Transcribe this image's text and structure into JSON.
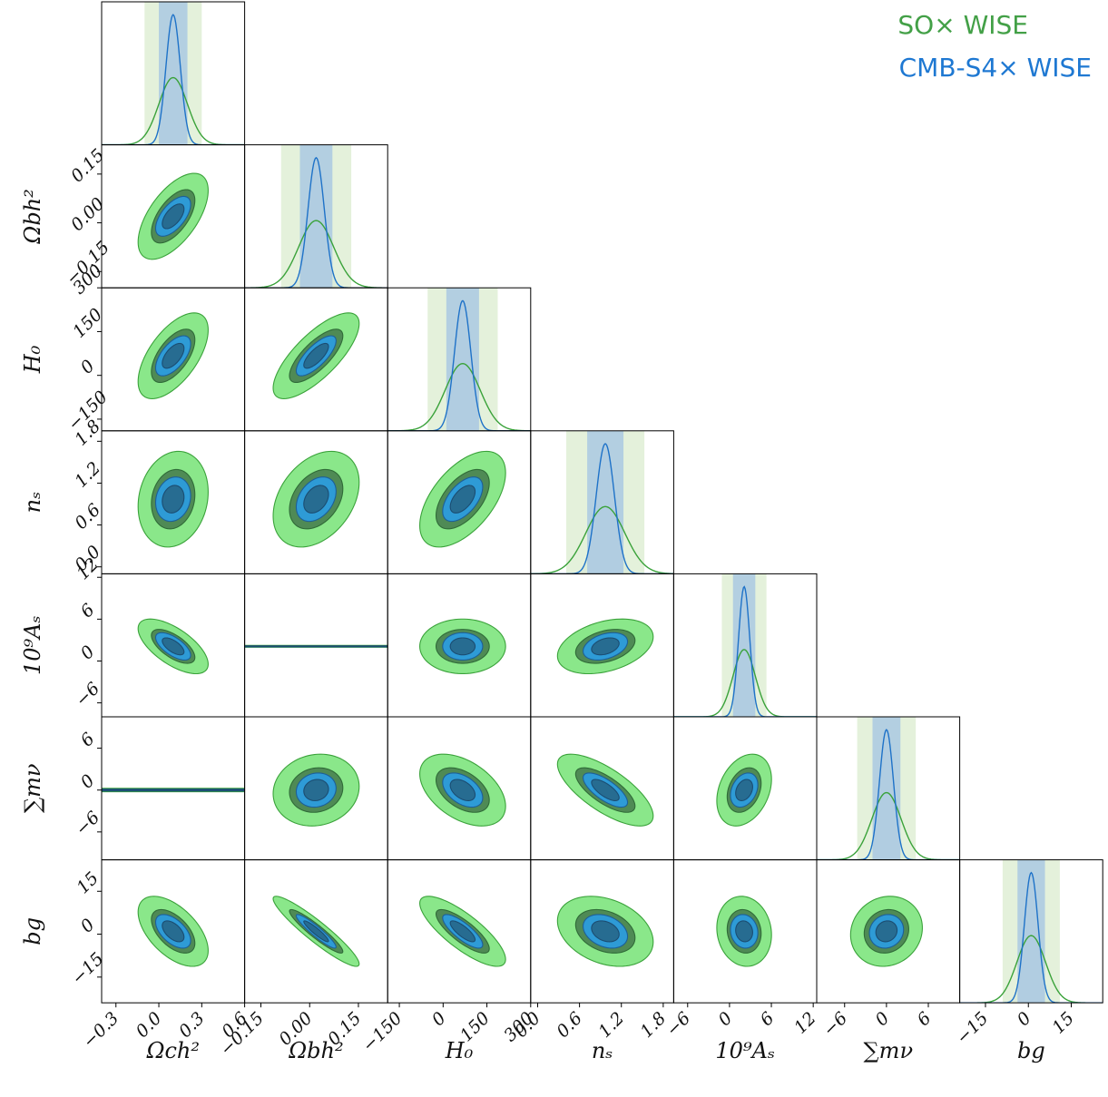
{
  "chart_data": {
    "type": "triangle",
    "legend": {
      "placement": "top-right",
      "entries": [
        {
          "label": "SO× WISE",
          "color": "#43a047"
        },
        {
          "label": "CMB-S4× WISE",
          "color": "#1e78d2"
        }
      ]
    },
    "colors": {
      "so_outer": "#8ae78a",
      "so_inner": "#4f8a55",
      "so_line": "#3aa23a",
      "s4_outer": "#2e9bd6",
      "s4_inner": "#276c91",
      "s4_line": "#1e72c8",
      "s4_fill": "#c7dcf2",
      "s4_band": "#9ec1e4"
    },
    "parameters": [
      {
        "key": "omc",
        "label": "Ωch²",
        "center": 0.1,
        "range": [
          -0.4,
          0.6
        ],
        "sigma_so": 0.1,
        "sigma_s4": 0.05,
        "ticks": [
          -0.3,
          0.0,
          0.3,
          0.6
        ],
        "tick_labels": [
          "−0.3",
          "0.0",
          "0.3",
          "0.6"
        ]
      },
      {
        "key": "omb",
        "label": "Ωbh²",
        "center": 0.02,
        "range": [
          -0.2,
          0.24
        ],
        "sigma_so": 0.054,
        "sigma_s4": 0.025,
        "ticks": [
          -0.15,
          0.0,
          0.15
        ],
        "tick_labels": [
          "−0.15",
          "0.00",
          "0.15"
        ]
      },
      {
        "key": "h0",
        "label": "H₀",
        "center": 67,
        "range": [
          -190,
          300
        ],
        "sigma_so": 60,
        "sigma_s4": 28,
        "ticks": [
          -150,
          0,
          150,
          300
        ],
        "tick_labels": [
          "−150",
          "0",
          "150",
          "300"
        ]
      },
      {
        "key": "ns",
        "label": "nₛ",
        "center": 0.97,
        "range": [
          -0.1,
          1.95
        ],
        "sigma_so": 0.28,
        "sigma_s4": 0.13,
        "ticks": [
          0.0,
          0.6,
          1.2,
          1.8
        ],
        "tick_labels": [
          "0.0",
          "0.6",
          "1.2",
          "1.8"
        ]
      },
      {
        "key": "as",
        "label": "10⁹Aₛ",
        "center": 2.1,
        "range": [
          -8,
          12.5
        ],
        "sigma_so": 1.6,
        "sigma_s4": 0.8,
        "ticks": [
          -6,
          0,
          6,
          12
        ],
        "tick_labels": [
          "−6",
          "0",
          "6",
          "12"
        ]
      },
      {
        "key": "mnu",
        "label": "∑mν",
        "center": 0.0,
        "range": [
          -10,
          10.5
        ],
        "sigma_so": 2.1,
        "sigma_s4": 1.0,
        "ticks": [
          -6,
          0,
          6
        ],
        "tick_labels": [
          "−6",
          "0",
          "6"
        ]
      },
      {
        "key": "bg",
        "label": "bg",
        "center": 1.0,
        "range": [
          -24,
          26
        ],
        "sigma_so": 5.0,
        "sigma_s4": 2.4,
        "ticks": [
          -15,
          0,
          15
        ],
        "tick_labels": [
          "−15",
          "0",
          "15"
        ]
      }
    ],
    "correlations": [
      {
        "pair": [
          "omb",
          "omc"
        ],
        "rho": 0.6
      },
      {
        "pair": [
          "h0",
          "omc"
        ],
        "rho": 0.6
      },
      {
        "pair": [
          "h0",
          "omb"
        ],
        "rho": 0.75
      },
      {
        "pair": [
          "ns",
          "omc"
        ],
        "rho": 0.15
      },
      {
        "pair": [
          "ns",
          "omb"
        ],
        "rho": 0.35
      },
      {
        "pair": [
          "ns",
          "h0"
        ],
        "rho": 0.55
      },
      {
        "pair": [
          "as",
          "omc"
        ],
        "rho": -0.65
      },
      {
        "pair": [
          "as",
          "omb"
        ],
        "rho": 0.0
      },
      {
        "pair": [
          "as",
          "h0"
        ],
        "rho": 0.0
      },
      {
        "pair": [
          "as",
          "ns"
        ],
        "rho": 0.35
      },
      {
        "pair": [
          "mnu",
          "omc"
        ],
        "rho": 0.0
      },
      {
        "pair": [
          "mnu",
          "omb"
        ],
        "rho": 0.1
      },
      {
        "pair": [
          "mnu",
          "h0"
        ],
        "rho": -0.45
      },
      {
        "pair": [
          "mnu",
          "ns"
        ],
        "rho": -0.72
      },
      {
        "pair": [
          "mnu",
          "as"
        ],
        "rho": 0.3
      },
      {
        "pair": [
          "bg",
          "omc"
        ],
        "rho": -0.55
      },
      {
        "pair": [
          "bg",
          "omb"
        ],
        "rho": -0.93
      },
      {
        "pair": [
          "bg",
          "h0"
        ],
        "rho": -0.8
      },
      {
        "pair": [
          "bg",
          "ns"
        ],
        "rho": -0.3
      },
      {
        "pair": [
          "bg",
          "as"
        ],
        "rho": -0.1
      },
      {
        "pair": [
          "bg",
          "mnu"
        ],
        "rho": 0.1
      }
    ]
  }
}
